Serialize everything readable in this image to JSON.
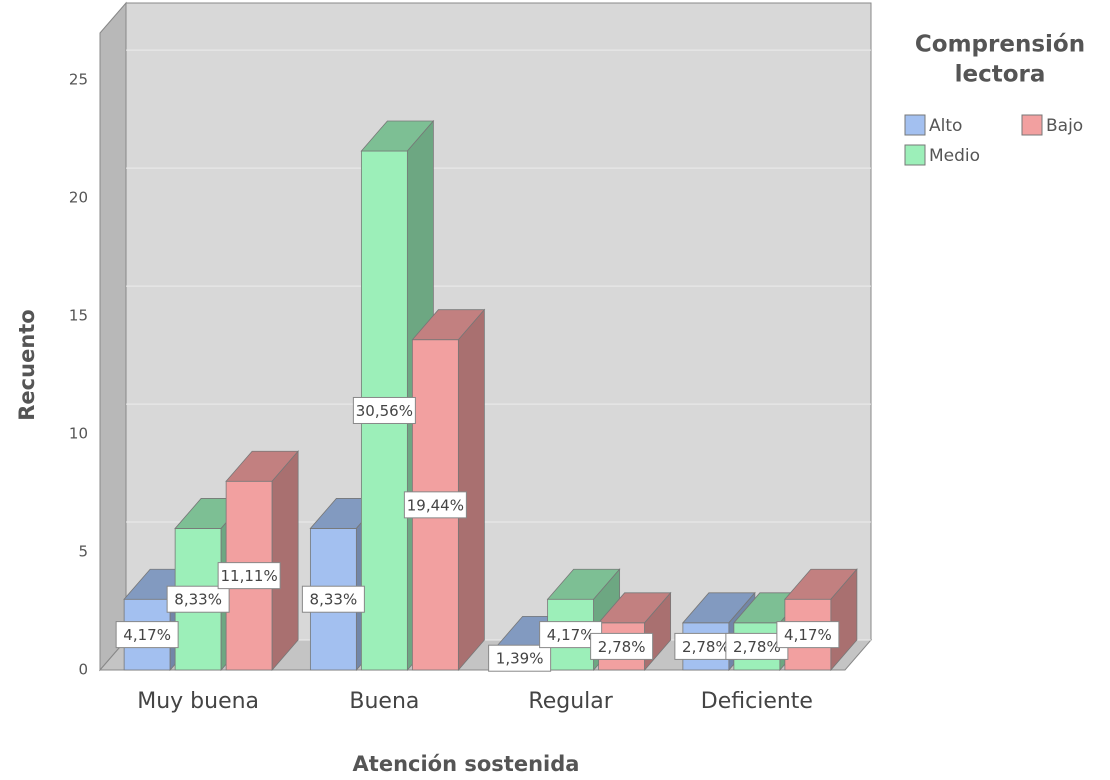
{
  "chart_data": {
    "type": "bar3d",
    "x_label": "Atención sostenida",
    "y_label": "Recuento",
    "legend_title": [
      "Comprensión",
      "lectora"
    ],
    "categories": [
      "Muy buena",
      "Buena",
      "Regular",
      "Deficiente"
    ],
    "series": [
      {
        "name": "Alto",
        "color": "#a3c0f0",
        "values": [
          3,
          6,
          1,
          2
        ],
        "percent": [
          4.17,
          8.33,
          1.39,
          2.78
        ],
        "percent_labels": [
          "4,17%",
          "8,33%",
          "1,39%",
          "2,78%"
        ]
      },
      {
        "name": "Medio",
        "color": "#9cefb9",
        "values": [
          6,
          22,
          3,
          2
        ],
        "percent": [
          8.33,
          30.56,
          4.17,
          2.78
        ],
        "percent_labels": [
          "8,33%",
          "30,56%",
          "4,17%",
          "2,78%"
        ]
      },
      {
        "name": "Bajo",
        "color": "#f2a0a0",
        "values": [
          8,
          14,
          2,
          3
        ],
        "percent": [
          11.11,
          19.44,
          2.78,
          4.17
        ],
        "percent_labels": [
          "11,11%",
          "19,44%",
          "2,78%",
          "4,17%"
        ]
      }
    ],
    "ylim": [
      0,
      27
    ],
    "yticks": [
      0,
      5,
      10,
      15,
      20,
      25
    ],
    "grid": true
  }
}
